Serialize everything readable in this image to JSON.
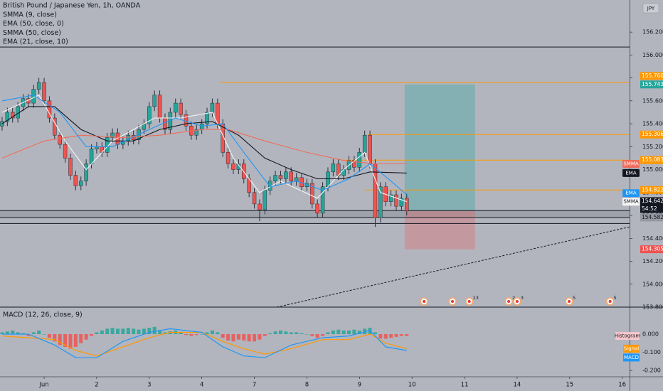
{
  "chart_data": [
    {
      "type": "candlestick",
      "title": "British Pound / Japanese Yen, 1h, OANDA",
      "currency": "JPY",
      "xlim": [
        -0.84,
        11.14
      ],
      "xticks": [
        {
          "value": 0,
          "label": "Jun"
        },
        {
          "value": 1,
          "label": "2"
        },
        {
          "value": 2,
          "label": "3"
        },
        {
          "value": 3,
          "label": "4"
        },
        {
          "value": 4,
          "label": "7"
        },
        {
          "value": 5,
          "label": "8"
        },
        {
          "value": 6,
          "label": "9"
        },
        {
          "value": 7,
          "label": "10"
        },
        {
          "value": 8,
          "label": "11"
        },
        {
          "value": 9,
          "label": "14"
        },
        {
          "value": 10,
          "label": "15"
        },
        {
          "value": 11,
          "label": "16"
        }
      ],
      "ylim": [
        153.8,
        156.48
      ],
      "yticks": [
        {
          "value": 153.8,
          "label": "153.800"
        },
        {
          "value": 154,
          "label": "154.000"
        },
        {
          "value": 154.2,
          "label": "154.200"
        },
        {
          "value": 154.4,
          "label": "154.400"
        },
        {
          "value": 154.6,
          "label": "154.600"
        },
        {
          "value": 154.8,
          "label": "154.800"
        },
        {
          "value": 155,
          "label": "155.000"
        },
        {
          "value": 155.2,
          "label": "155.200"
        },
        {
          "value": 155.4,
          "label": "155.400"
        },
        {
          "value": 155.6,
          "label": "155.600"
        },
        {
          "value": 155.8,
          "label": "155.800"
        },
        {
          "value": 156,
          "label": "156.000"
        },
        {
          "value": 156.2,
          "label": "156.200"
        }
      ],
      "up_color": "#26a69a",
      "down_color": "#ef5350",
      "wick_color": "#2a2e39",
      "candles": {
        "x": [
          -0.8,
          -0.7,
          -0.6,
          -0.5,
          -0.4,
          -0.3,
          -0.2,
          -0.1,
          0,
          0.1,
          0.2,
          0.3,
          0.4,
          0.5,
          0.6,
          0.7,
          0.8,
          0.9,
          1,
          1.1,
          1.2,
          1.3,
          1.4,
          1.5,
          1.6,
          1.7,
          1.8,
          1.9,
          2,
          2.1,
          2.2,
          2.3,
          2.4,
          2.5,
          2.6,
          2.7,
          2.8,
          2.9,
          3,
          3.1,
          3.2,
          3.3,
          3.4,
          3.5,
          3.6,
          3.7,
          3.8,
          3.9,
          4,
          4.1,
          4.2,
          4.3,
          4.4,
          4.5,
          4.6,
          4.7,
          4.8,
          4.9,
          5,
          5.1,
          5.2,
          5.3,
          5.4,
          5.5,
          5.6,
          5.7,
          5.8,
          5.9,
          6,
          6.1,
          6.2,
          6.3,
          6.4,
          6.5,
          6.6,
          6.7,
          6.8,
          6.9
        ],
        "open": [
          155.38,
          155.42,
          155.5,
          155.45,
          155.55,
          155.62,
          155.58,
          155.7,
          155.76,
          155.6,
          155.45,
          155.3,
          155.22,
          155.1,
          154.95,
          154.86,
          154.9,
          155.05,
          155.18,
          155.2,
          155.15,
          155.28,
          155.32,
          155.22,
          155.25,
          155.3,
          155.26,
          155.35,
          155.4,
          155.55,
          155.65,
          155.45,
          155.35,
          155.5,
          155.58,
          155.48,
          155.38,
          155.3,
          155.35,
          155.4,
          155.5,
          155.58,
          155.4,
          155.15,
          155.05,
          155.0,
          155.05,
          154.92,
          154.8,
          154.7,
          154.65,
          154.82,
          154.9,
          154.95,
          154.92,
          154.98,
          154.9,
          154.93,
          154.85,
          154.88,
          154.7,
          154.62,
          154.85,
          154.98,
          155.05,
          154.95,
          155.0,
          155.08,
          155.02,
          155.15,
          155.3,
          155.05,
          154.58,
          154.85,
          154.72,
          154.78,
          154.68,
          154.75
        ],
        "high": [
          155.46,
          155.54,
          155.54,
          155.59,
          155.66,
          155.66,
          155.74,
          155.8,
          155.8,
          155.64,
          155.49,
          155.34,
          155.26,
          155.14,
          154.99,
          154.94,
          155.09,
          155.22,
          155.24,
          155.24,
          155.32,
          155.36,
          155.36,
          155.29,
          155.34,
          155.34,
          155.39,
          155.44,
          155.59,
          155.69,
          155.69,
          155.49,
          155.54,
          155.62,
          155.62,
          155.52,
          155.42,
          155.39,
          155.44,
          155.54,
          155.62,
          155.62,
          155.44,
          155.19,
          155.09,
          155.09,
          155.09,
          154.96,
          154.84,
          154.74,
          154.86,
          154.94,
          154.99,
          154.99,
          155.02,
          155.02,
          154.97,
          154.97,
          154.92,
          154.92,
          154.74,
          154.89,
          155.02,
          155.09,
          155.09,
          155.04,
          155.12,
          155.12,
          155.19,
          155.34,
          155.34,
          155.09,
          154.89,
          154.89,
          154.82,
          154.82,
          154.79,
          154.79
        ],
        "low": [
          155.34,
          155.38,
          155.41,
          155.41,
          155.51,
          155.54,
          155.54,
          155.66,
          155.56,
          155.41,
          155.26,
          155.18,
          155.06,
          154.91,
          154.82,
          154.82,
          154.86,
          155.01,
          155.14,
          155.11,
          155.11,
          155.24,
          155.18,
          155.18,
          155.21,
          155.22,
          155.22,
          155.31,
          155.36,
          155.51,
          155.41,
          155.31,
          155.31,
          155.46,
          155.44,
          155.34,
          155.26,
          155.26,
          155.31,
          155.36,
          155.46,
          155.36,
          155.11,
          155.01,
          154.96,
          154.96,
          154.88,
          154.76,
          154.66,
          154.55,
          154.61,
          154.78,
          154.86,
          154.88,
          154.88,
          154.86,
          154.86,
          154.81,
          154.81,
          154.66,
          154.58,
          154.58,
          154.81,
          154.94,
          154.91,
          154.91,
          154.96,
          154.98,
          154.98,
          155.11,
          155.01,
          154.5,
          154.54,
          154.68,
          154.68,
          154.64,
          154.64,
          154.6
        ],
        "close": [
          155.42,
          155.5,
          155.45,
          155.55,
          155.62,
          155.58,
          155.7,
          155.76,
          155.6,
          155.45,
          155.3,
          155.22,
          155.1,
          154.95,
          154.86,
          154.9,
          155.05,
          155.18,
          155.2,
          155.15,
          155.28,
          155.32,
          155.22,
          155.25,
          155.3,
          155.26,
          155.35,
          155.4,
          155.55,
          155.65,
          155.45,
          155.35,
          155.5,
          155.58,
          155.48,
          155.38,
          155.3,
          155.35,
          155.4,
          155.5,
          155.58,
          155.4,
          155.15,
          155.05,
          155.0,
          155.05,
          154.92,
          154.8,
          154.7,
          154.65,
          154.82,
          154.9,
          154.95,
          154.92,
          154.98,
          154.9,
          154.93,
          154.85,
          154.88,
          154.7,
          154.62,
          154.85,
          154.98,
          155.05,
          154.95,
          155.0,
          155.08,
          155.02,
          155.15,
          155.3,
          155.05,
          154.58,
          154.85,
          154.72,
          154.78,
          154.68,
          154.75,
          154.64
        ]
      },
      "indicators": [
        {
          "name": "SMMA (9, close)",
          "tag": "SMMA",
          "color": "#f5f5f5",
          "tag_text_color": "#131722",
          "x": [
            -0.8,
            -0.1,
            0.4,
            0.8,
            1.3,
            2.1,
            2.6,
            3.2,
            3.6,
            4.1,
            4.5,
            5.2,
            5.7,
            6.1,
            6.4,
            6.9
          ],
          "values": [
            155.5,
            155.65,
            155.25,
            155.0,
            155.25,
            155.45,
            155.45,
            155.5,
            155.1,
            154.8,
            154.9,
            154.75,
            155.0,
            155.15,
            154.8,
            154.72
          ]
        },
        {
          "name": "EMA (50, close, 0)",
          "tag": "EMA",
          "color": "#131722",
          "tag_text_color": "#ffffff",
          "x": [
            -0.8,
            -0.3,
            0.2,
            0.7,
            1.2,
            1.7,
            2.2,
            2.7,
            3.2,
            3.7,
            4.2,
            4.7,
            5.2,
            5.7,
            6.2,
            6.9
          ],
          "values": [
            155.4,
            155.55,
            155.55,
            155.35,
            155.25,
            155.25,
            155.35,
            155.4,
            155.42,
            155.3,
            155.1,
            155.0,
            154.92,
            154.92,
            154.98,
            154.97
          ]
        },
        {
          "name": "SMMA (50, close)",
          "tag": "SMMA",
          "color": "#f06c5a",
          "tag_text_color": "#ffffff",
          "x": [
            -0.8,
            0,
            0.7,
            1.5,
            2.2,
            3,
            3.5,
            4.2,
            5,
            5.7,
            6.3,
            6.9
          ],
          "values": [
            155.1,
            155.25,
            155.3,
            155.28,
            155.3,
            155.35,
            155.35,
            155.25,
            155.15,
            155.08,
            155.05,
            155.05
          ]
        },
        {
          "name": "EMA (21, close, 10)",
          "tag": "EMA",
          "color": "#2196f3",
          "tag_text_color": "#ffffff",
          "x": [
            -0.8,
            -0.2,
            0.3,
            0.8,
            1.3,
            2,
            2.5,
            3,
            3.4,
            3.8,
            4.3,
            4.8,
            5.3,
            5.8,
            6.2,
            6.6,
            6.9
          ],
          "values": [
            155.6,
            155.65,
            155.5,
            155.2,
            155.2,
            155.35,
            155.45,
            155.38,
            155.4,
            155.15,
            154.85,
            154.9,
            154.82,
            154.92,
            155.05,
            154.9,
            154.78
          ]
        }
      ],
      "band": {
        "values": [
          154.582,
          154.642
        ],
        "color": "#8e929b"
      },
      "levels": [
        {
          "value": 156.07,
          "x0": -0.84,
          "color": "#131722"
        },
        {
          "value": 155.76,
          "x0": 3.35,
          "color": "#ff9800",
          "label": "155.760",
          "label_color": "#ff9800"
        },
        {
          "value": 155.306,
          "x0": 6.15,
          "color": "#ff9800",
          "label": "155.306",
          "label_color": "#ff9800"
        },
        {
          "value": 155.083,
          "x0": 5.65,
          "color": "#ff9800",
          "label": "155.083",
          "label_color": "#ff9800"
        },
        {
          "value": 154.822,
          "x0": 6.1,
          "color": "#ff9800",
          "label": "154.822",
          "label_color": "#ff9800"
        },
        {
          "value": 154.642,
          "x0": -0.84,
          "color": "#131722",
          "label": "154.642",
          "sublabel": "54:52",
          "label_color": "#131722"
        },
        {
          "value": 154.582,
          "x0": -0.84,
          "color": "#131722",
          "label": "154.582",
          "label_color": "#9598a1"
        },
        {
          "value": 154.53,
          "x0": -0.84,
          "color": "#131722"
        }
      ],
      "position": {
        "entry": 154.64,
        "target": 155.743,
        "stop": 154.305,
        "x0": 6.86,
        "x1": 8.2,
        "target_label": "155.743",
        "stop_label": "154.305",
        "target_color": "#26a69a",
        "stop_color": "#ef5350"
      },
      "trendline": {
        "x": [
          4.43,
          11.14
        ],
        "values": [
          153.8,
          154.5
        ],
        "color": "#131722"
      },
      "events": [
        {
          "x": 7.23
        },
        {
          "x": 7.77
        },
        {
          "x": 8.09,
          "label": "13"
        },
        {
          "x": 8.84,
          "label": "2"
        },
        {
          "x": 9.0,
          "label": "3"
        },
        {
          "x": 9.99,
          "label": "5"
        },
        {
          "x": 10.77,
          "label": "5"
        }
      ]
    },
    {
      "type": "macd",
      "title": "MACD (12, 26, close, 9)",
      "ylim": [
        -0.235,
        0.149
      ],
      "yticks": [
        {
          "value": 0,
          "label": "0.000"
        },
        {
          "value": -0.1,
          "label": "-0.100"
        },
        {
          "value": -0.2,
          "label": "-0.200"
        }
      ],
      "histogram": {
        "name": "Histogram",
        "up_color": "#26a69a",
        "down_color": "#ef5350",
        "tag_color": "#f7c7cd",
        "x": [
          -0.8,
          -0.7,
          -0.6,
          -0.5,
          -0.4,
          -0.3,
          -0.2,
          -0.1,
          0,
          0.1,
          0.2,
          0.3,
          0.4,
          0.5,
          0.6,
          0.7,
          0.8,
          0.9,
          1,
          1.1,
          1.2,
          1.3,
          1.4,
          1.5,
          1.6,
          1.7,
          1.8,
          1.9,
          2,
          2.1,
          2.2,
          2.3,
          2.4,
          2.5,
          2.6,
          2.7,
          2.8,
          2.9,
          3,
          3.1,
          3.2,
          3.3,
          3.4,
          3.5,
          3.6,
          3.7,
          3.8,
          3.9,
          4,
          4.1,
          4.2,
          4.3,
          4.4,
          4.5,
          4.6,
          4.7,
          4.8,
          4.9,
          5,
          5.1,
          5.2,
          5.3,
          5.4,
          5.5,
          5.6,
          5.7,
          5.8,
          5.9,
          6,
          6.1,
          6.2,
          6.3,
          6.4,
          6.5,
          6.6,
          6.7,
          6.8,
          6.9
        ],
        "values": [
          0.01,
          0.015,
          0.02,
          0.01,
          0.005,
          -0.01,
          0.01,
          0.02,
          0.0,
          -0.02,
          -0.04,
          -0.06,
          -0.07,
          -0.08,
          -0.07,
          -0.05,
          -0.03,
          -0.01,
          0.01,
          0.02,
          0.03,
          0.035,
          0.03,
          0.03,
          0.035,
          0.03,
          0.025,
          0.03,
          0.035,
          0.04,
          0.02,
          0.01,
          0.015,
          0.02,
          0.01,
          -0.005,
          -0.01,
          -0.005,
          0.0,
          0.01,
          0.02,
          0.01,
          -0.02,
          -0.035,
          -0.04,
          -0.03,
          -0.035,
          -0.04,
          -0.04,
          -0.03,
          -0.01,
          0.005,
          0.015,
          0.02,
          0.015,
          0.01,
          0.01,
          0.005,
          0.0,
          -0.01,
          -0.02,
          -0.01,
          0.01,
          0.02,
          0.025,
          0.02,
          0.02,
          0.025,
          0.02,
          0.03,
          0.035,
          0.01,
          -0.025,
          -0.025,
          -0.02,
          -0.015,
          -0.01,
          -0.01
        ]
      },
      "series": [
        {
          "name": "Signal",
          "color": "#ff9800",
          "x": [
            -0.8,
            -0.3,
            0.2,
            0.6,
            1,
            1.5,
            2,
            2.4,
            3,
            3.4,
            3.8,
            4.2,
            4.7,
            5.3,
            5.8,
            6.2,
            6.5,
            6.9
          ],
          "values": [
            -0.01,
            -0.02,
            -0.03,
            -0.09,
            -0.12,
            -0.07,
            -0.02,
            0.01,
            0.01,
            -0.04,
            -0.08,
            -0.11,
            -0.08,
            -0.03,
            -0.03,
            0.0,
            -0.05,
            -0.08
          ]
        },
        {
          "name": "MACD",
          "color": "#2196f3",
          "x": [
            -0.8,
            -0.3,
            0.2,
            0.6,
            1,
            1.5,
            2,
            2.4,
            3,
            3.4,
            3.8,
            4.2,
            4.7,
            5.3,
            5.8,
            6.2,
            6.5,
            6.9
          ],
          "values": [
            0.0,
            0.0,
            -0.06,
            -0.13,
            -0.13,
            -0.04,
            0.01,
            0.03,
            0.01,
            -0.07,
            -0.12,
            -0.13,
            -0.06,
            -0.02,
            -0.01,
            0.02,
            -0.07,
            -0.09
          ]
        }
      ]
    }
  ]
}
